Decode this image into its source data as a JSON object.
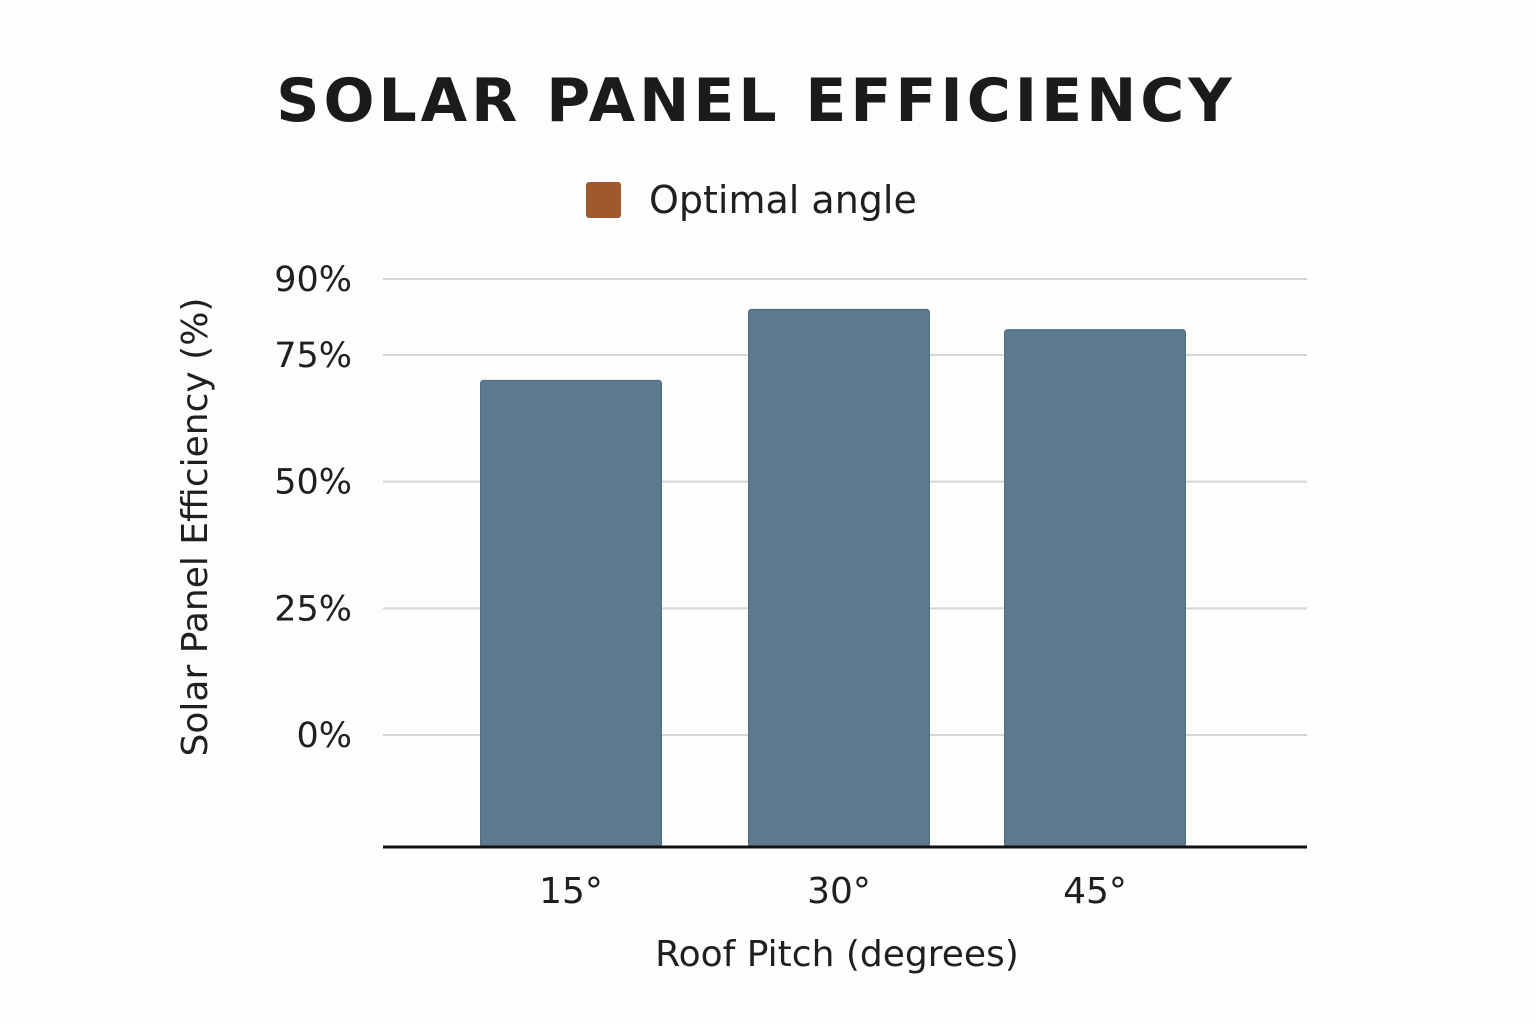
{
  "chart_data": {
    "type": "bar",
    "title": "SOLAR PANEL EFFICIENCY",
    "categories": [
      "15°",
      "30°",
      "45°"
    ],
    "values": [
      70,
      84,
      80
    ],
    "xlabel": "Roof Pitch (degrees)",
    "ylabel": "Solar Panel Efficiency (%)",
    "y_ticks": [
      0,
      25,
      50,
      75,
      90
    ],
    "y_tick_labels": [
      "0%",
      "25%",
      "50%",
      "75%",
      "90%"
    ],
    "ylim": [
      -24,
      90
    ],
    "grid": true,
    "legend": [
      {
        "label": "Optimal angle",
        "color": "#a0592f"
      }
    ],
    "legend_position": "top-center",
    "bar_color": "#5c7a8f"
  },
  "colors": {
    "bar": "#5c7a8f",
    "bar_edge": "#4f6c80",
    "gridline": "#d6d6d6",
    "axis": "#111111",
    "legend_swatch": "#a0592f"
  }
}
